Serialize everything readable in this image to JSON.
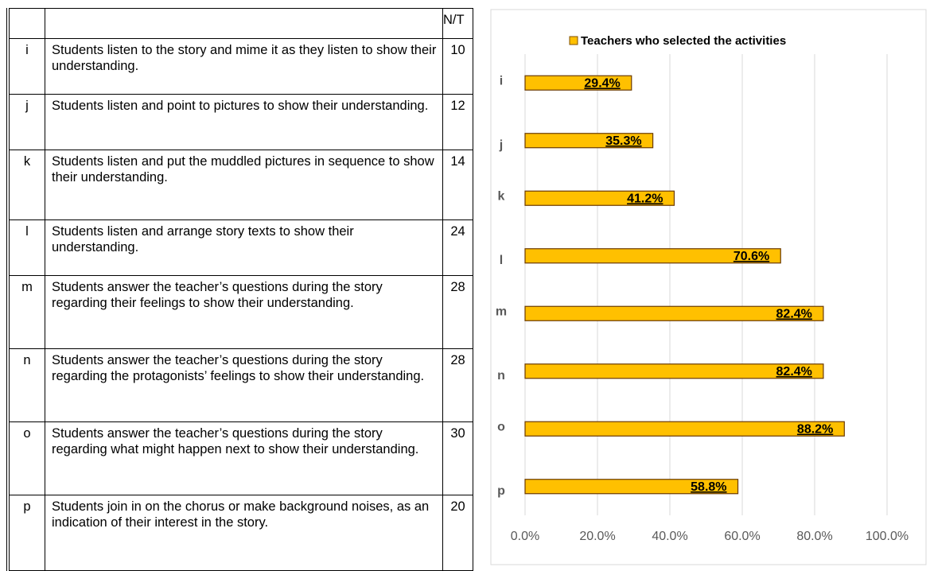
{
  "table": {
    "header": [
      "",
      "",
      "N/T"
    ],
    "rows": [
      [
        "i",
        "Students listen to the story and mime it as they listen to show their understanding.",
        10
      ],
      [
        "j",
        "Students listen and point to pictures to show their understanding.",
        12
      ],
      [
        "k",
        "Students listen and put the muddled pictures in sequence to show their understanding.",
        14
      ],
      [
        "l",
        "Students listen and arrange story texts to show their understanding.",
        24
      ],
      [
        "m",
        "Students answer the teacher’s questions during the story regarding their feelings to show their understanding.",
        28
      ],
      [
        "n",
        "Students answer the teacher’s questions during the story regarding the protagonists’ feelings to show their understanding.",
        28
      ],
      [
        "o",
        "Students answer the teacher’s questions during the story regarding what might happen next to show their understanding.",
        30
      ],
      [
        "p",
        "Students join in on the chorus or make background noises, as an indication of their interest in the story.",
        20
      ]
    ]
  },
  "chart_data": {
    "type": "bar",
    "orientation": "horizontal",
    "series": [
      {
        "name": "Teachers who selected the activities",
        "color": "#ffc000",
        "values": [
          29.4,
          35.3,
          41.2,
          70.6,
          82.4,
          82.4,
          88.2,
          58.8
        ],
        "value_labels": [
          "29.4%",
          "35.3%",
          "41.2%",
          "70.6%",
          "82.4%",
          "82.4%",
          "88.2%",
          "58.8%"
        ]
      }
    ],
    "categories": [
      "i",
      "j",
      "k",
      "l",
      "m",
      "n",
      "o",
      "p"
    ],
    "xlim": [
      0,
      100
    ],
    "xticks": [
      {
        "value": 0,
        "label": "0.0%"
      },
      {
        "value": 20,
        "label": "20.0%"
      },
      {
        "value": 40,
        "label": "40.0%"
      },
      {
        "value": 60,
        "label": "60.0%"
      },
      {
        "value": 80,
        "label": "80.0%"
      },
      {
        "value": 100,
        "label": "100.0%"
      }
    ],
    "grid": true,
    "legend": "top"
  }
}
